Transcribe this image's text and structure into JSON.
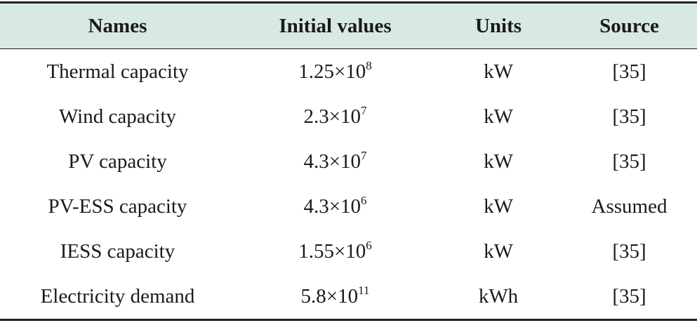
{
  "table": {
    "header": [
      "Names",
      "Initial values",
      "Units",
      "Source"
    ],
    "rows": [
      [
        "Thermal capacity",
        {
          "base": "1.25×10",
          "exponent": "8"
        },
        "kW",
        "[35]"
      ],
      [
        "Wind capacity",
        {
          "base": "2.3×10",
          "exponent": "7"
        },
        "kW",
        "[35]"
      ],
      [
        "PV capacity",
        {
          "base": "4.3×10",
          "exponent": "7"
        },
        "kW",
        "[35]"
      ],
      [
        "PV-ESS capacity",
        {
          "base": "4.3×10",
          "exponent": "6"
        },
        "kW",
        "Assumed"
      ],
      [
        "IESS capacity",
        {
          "base": "1.55×10",
          "exponent": "6"
        },
        "kW",
        "[35]"
      ],
      [
        "Electricity demand",
        {
          "base": "5.8×10",
          "exponent": "11"
        },
        "kWh",
        "[35]"
      ]
    ]
  }
}
